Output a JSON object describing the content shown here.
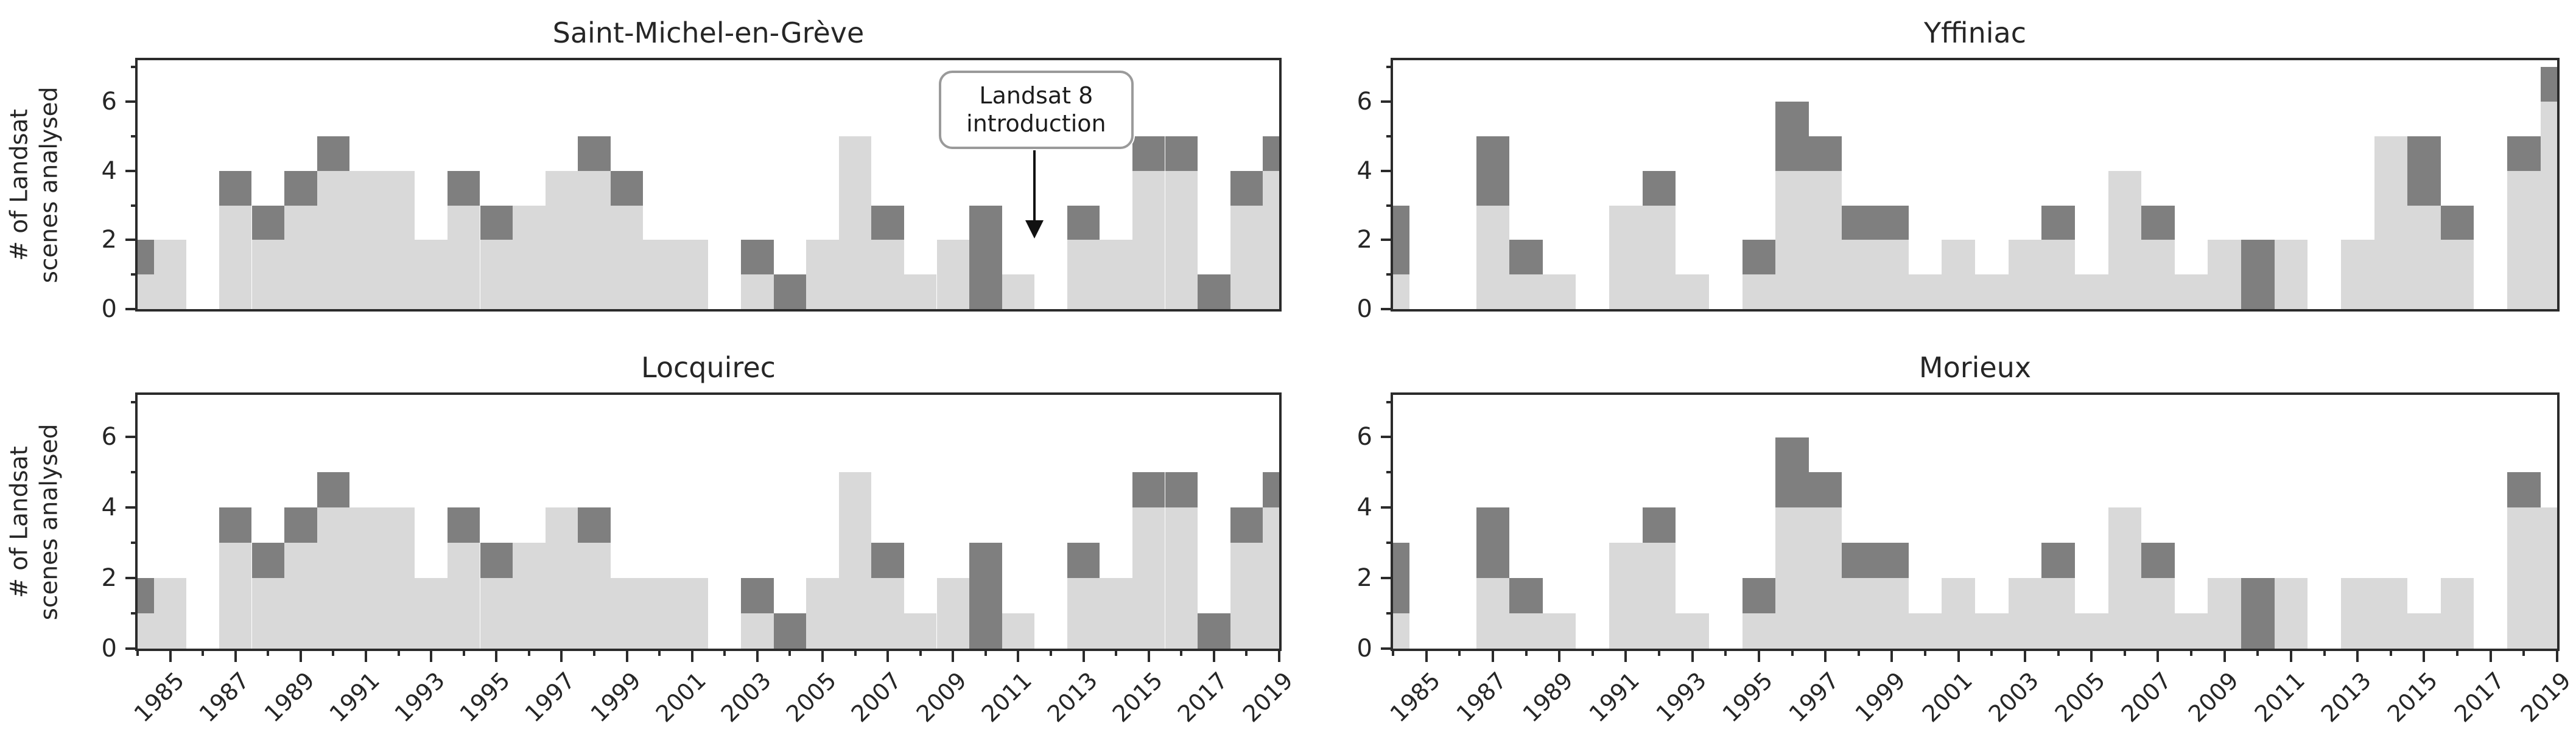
{
  "figure": {
    "ylabel": "# of Landsat\nscenes analysed",
    "background_color": "#ffffff",
    "frame_color": "#2b2b2b",
    "light_series_color": "#d9d9d9",
    "dark_series_color": "#7f7f7f"
  },
  "axes": {
    "years": [
      1984,
      1985,
      1986,
      1987,
      1988,
      1989,
      1990,
      1991,
      1992,
      1993,
      1994,
      1995,
      1996,
      1997,
      1998,
      1999,
      2000,
      2001,
      2002,
      2003,
      2004,
      2005,
      2006,
      2007,
      2008,
      2009,
      2010,
      2011,
      2012,
      2013,
      2014,
      2015,
      2016,
      2017,
      2018,
      2019
    ],
    "x_start_year": 1984,
    "x_end_year": 2019,
    "ylim": [
      0,
      7.2
    ],
    "y_major_ticks": [
      0,
      2,
      4,
      6
    ],
    "y_minor_ticks": [
      1,
      3,
      5,
      7
    ],
    "x_major_tick_years": [
      1985,
      1987,
      1989,
      1991,
      1993,
      1995,
      1997,
      1999,
      2001,
      2003,
      2005,
      2007,
      2009,
      2011,
      2013,
      2015,
      2017,
      2019
    ],
    "x_minor_tick_years": [
      1984,
      1986,
      1988,
      1990,
      1992,
      1994,
      1996,
      1998,
      2000,
      2002,
      2004,
      2006,
      2008,
      2010,
      2012,
      2014,
      2016,
      2018
    ]
  },
  "annotation": {
    "text": "Landsat 8\nintroduction",
    "arrow_points_to_year": 2012,
    "attached_to_subplot": "Saint-Michel-en-Grève"
  },
  "chart_data": [
    {
      "type": "bar",
      "stacked": true,
      "title": "Saint-Michel-en-Grève",
      "position": "top-left",
      "show_x_labels": false,
      "has_annotation": true,
      "series": [
        {
          "name": "light-gray-scenes",
          "color": "#d9d9d9",
          "values": [
            1,
            2,
            0,
            3,
            2,
            3,
            4,
            4,
            4,
            2,
            3,
            2,
            3,
            4,
            4,
            3,
            2,
            2,
            0,
            1,
            0,
            2,
            5,
            2,
            1,
            2,
            0,
            1,
            0,
            2,
            2,
            4,
            4,
            0,
            3,
            4
          ]
        },
        {
          "name": "dark-gray-scenes",
          "color": "#7f7f7f",
          "values": [
            1,
            0,
            0,
            1,
            1,
            1,
            1,
            0,
            0,
            0,
            1,
            1,
            0,
            0,
            1,
            1,
            0,
            0,
            0,
            1,
            1,
            0,
            0,
            1,
            0,
            0,
            3,
            0,
            0,
            1,
            0,
            1,
            1,
            1,
            1,
            1
          ]
        }
      ]
    },
    {
      "type": "bar",
      "stacked": true,
      "title": "Yffiniac",
      "position": "top-right",
      "show_x_labels": false,
      "has_annotation": false,
      "series": [
        {
          "name": "light-gray-scenes",
          "color": "#d9d9d9",
          "values": [
            1,
            0,
            0,
            3,
            1,
            1,
            0,
            3,
            3,
            1,
            0,
            1,
            4,
            4,
            2,
            2,
            1,
            2,
            1,
            2,
            2,
            1,
            4,
            2,
            1,
            2,
            0,
            2,
            0,
            2,
            5,
            3,
            2,
            0,
            4,
            6
          ]
        },
        {
          "name": "dark-gray-scenes",
          "color": "#7f7f7f",
          "values": [
            2,
            0,
            0,
            2,
            1,
            0,
            0,
            0,
            1,
            0,
            0,
            1,
            2,
            1,
            1,
            1,
            0,
            0,
            0,
            0,
            1,
            0,
            0,
            1,
            0,
            0,
            2,
            0,
            0,
            0,
            0,
            2,
            1,
            0,
            1,
            1
          ]
        }
      ]
    },
    {
      "type": "bar",
      "stacked": true,
      "title": "Locquirec",
      "position": "bottom-left",
      "show_x_labels": true,
      "has_annotation": false,
      "series": [
        {
          "name": "light-gray-scenes",
          "color": "#d9d9d9",
          "values": [
            1,
            2,
            0,
            3,
            2,
            3,
            4,
            4,
            4,
            2,
            3,
            2,
            3,
            4,
            3,
            2,
            2,
            2,
            0,
            1,
            0,
            2,
            5,
            2,
            1,
            2,
            0,
            1,
            0,
            2,
            2,
            4,
            4,
            0,
            3,
            4
          ]
        },
        {
          "name": "dark-gray-scenes",
          "color": "#7f7f7f",
          "values": [
            1,
            0,
            0,
            1,
            1,
            1,
            1,
            0,
            0,
            0,
            1,
            1,
            0,
            0,
            1,
            0,
            0,
            0,
            0,
            1,
            1,
            0,
            0,
            1,
            0,
            0,
            3,
            0,
            0,
            1,
            0,
            1,
            1,
            1,
            1,
            1
          ]
        }
      ]
    },
    {
      "type": "bar",
      "stacked": true,
      "title": "Morieux",
      "position": "bottom-right",
      "show_x_labels": true,
      "has_annotation": false,
      "series": [
        {
          "name": "light-gray-scenes",
          "color": "#d9d9d9",
          "values": [
            1,
            0,
            0,
            2,
            1,
            1,
            0,
            3,
            3,
            1,
            0,
            1,
            4,
            4,
            2,
            2,
            1,
            2,
            1,
            2,
            2,
            1,
            4,
            2,
            1,
            2,
            0,
            2,
            0,
            2,
            2,
            1,
            2,
            0,
            4,
            4
          ]
        },
        {
          "name": "dark-gray-scenes",
          "color": "#7f7f7f",
          "values": [
            2,
            0,
            0,
            2,
            1,
            0,
            0,
            0,
            1,
            0,
            0,
            1,
            2,
            1,
            1,
            1,
            0,
            0,
            0,
            0,
            1,
            0,
            0,
            1,
            0,
            0,
            2,
            0,
            0,
            0,
            0,
            0,
            0,
            0,
            1,
            0
          ]
        }
      ]
    }
  ]
}
